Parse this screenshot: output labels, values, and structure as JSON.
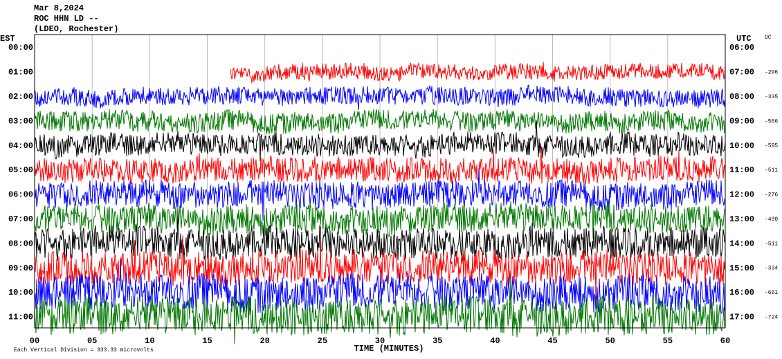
{
  "header": {
    "lines": [
      "Mar 8,2024",
      "ROC HHN LD --",
      "(LDEO, Rochester)"
    ]
  },
  "left_axis": {
    "title": "EST",
    "labels": [
      "00:00",
      "01:00",
      "02:00",
      "03:00",
      "04:00",
      "05:00",
      "06:00",
      "07:00",
      "08:00",
      "09:00",
      "10:00",
      "11:00"
    ]
  },
  "right_axis": {
    "title": "UTC",
    "labels": [
      "06:00",
      "07:00",
      "08:00",
      "09:00",
      "10:00",
      "11:00",
      "12:00",
      "13:00",
      "14:00",
      "15:00",
      "16:00",
      "17:00"
    ]
  },
  "dc": {
    "title": "DC",
    "values": [
      null,
      -296,
      -335,
      -566,
      -595,
      -511,
      -276,
      -490,
      -511,
      -334,
      -661,
      -724
    ]
  },
  "time_axis": {
    "title": "TIME (MINUTES)",
    "range": [
      0,
      60
    ],
    "ticks": [
      {
        "value": 0,
        "label": "00"
      },
      {
        "value": 5,
        "label": "05"
      },
      10,
      15,
      20,
      25,
      30,
      35,
      40,
      45,
      50,
      55,
      60
    ]
  },
  "footer": "Each Vertical Division =  333.33 microvolts"
}
